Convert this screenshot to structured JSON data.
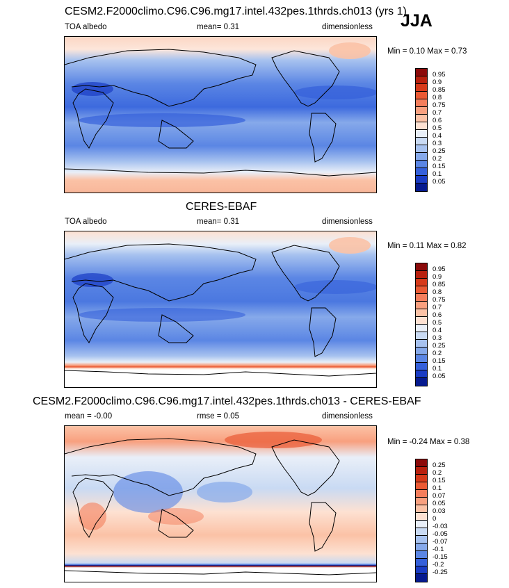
{
  "season": "JJA",
  "panels": [
    {
      "title": "CESM2.F2000climo.C96.C96.mg17.intel.432pes.1thrds.ch013 (yrs 1)",
      "left_label": "TOA albedo",
      "center_label": "mean=  0.31",
      "right_label": "dimensionless",
      "minmax": "Min =  0.10 Max =  0.73",
      "colorbar": {
        "ticks": [
          "0.95",
          "0.9",
          "0.85",
          "0.8",
          "0.75",
          "0.7",
          "0.6",
          "0.5",
          "0.4",
          "0.3",
          "0.25",
          "0.2",
          "0.15",
          "0.1",
          "0.05"
        ],
        "colors": [
          "#8b0a0a",
          "#b8200e",
          "#d63a1a",
          "#ea5a34",
          "#f47e5c",
          "#f8a07f",
          "#fbc2a6",
          "#fde1d2",
          "#e9eff8",
          "#c9daf3",
          "#a7c2ef",
          "#86a9ea",
          "#5b86e4",
          "#3560da",
          "#1a3cc4",
          "#061a8f"
        ]
      }
    },
    {
      "title": "CERES-EBAF",
      "left_label": "TOA albedo",
      "center_label": "mean=  0.31",
      "right_label": "dimensionless",
      "minmax": "Min =  0.11 Max =  0.82",
      "colorbar": {
        "ticks": [
          "0.95",
          "0.9",
          "0.85",
          "0.8",
          "0.75",
          "0.7",
          "0.6",
          "0.5",
          "0.4",
          "0.3",
          "0.25",
          "0.2",
          "0.15",
          "0.1",
          "0.05"
        ],
        "colors": [
          "#8b0a0a",
          "#b8200e",
          "#d63a1a",
          "#ea5a34",
          "#f47e5c",
          "#f8a07f",
          "#fbc2a6",
          "#fde1d2",
          "#e9eff8",
          "#c9daf3",
          "#a7c2ef",
          "#86a9ea",
          "#5b86e4",
          "#3560da",
          "#1a3cc4",
          "#061a8f"
        ]
      }
    },
    {
      "title": "CESM2.F2000climo.C96.C96.mg17.intel.432pes.1thrds.ch013 - CERES-EBAF",
      "left_label": "mean =  -0.00",
      "center_label": "rmse =  0.05",
      "right_label": "dimensionless",
      "minmax": "Min = -0.24 Max =  0.38",
      "colorbar": {
        "ticks": [
          "0.25",
          "0.2",
          "0.15",
          "0.1",
          "0.07",
          "0.05",
          "0.03",
          "0",
          "-0.03",
          "-0.05",
          "-0.07",
          "-0.1",
          "-0.15",
          "-0.2",
          "-0.25"
        ],
        "colors": [
          "#8b0a0a",
          "#b8200e",
          "#d63a1a",
          "#ea5a34",
          "#f47e5c",
          "#f8a07f",
          "#fbc2a6",
          "#fde1d2",
          "#e9eff8",
          "#c9daf3",
          "#a7c2ef",
          "#86a9ea",
          "#5b86e4",
          "#3560da",
          "#1a3cc4",
          "#061a8f"
        ]
      }
    }
  ]
}
